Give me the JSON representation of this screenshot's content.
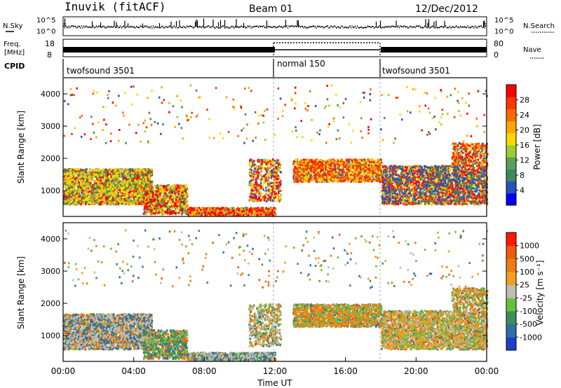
{
  "header": {
    "station": "Inuvik (fitACF)",
    "beam": "Beam 01",
    "date": "12/Dec/2012"
  },
  "top_panels": {
    "nsky_label": "N.Sky",
    "nsearch_label": "N.Search",
    "nsky_ticks": [
      "10^5",
      "10^0"
    ],
    "nsearch_ticks": [
      "10^5",
      "10^0"
    ],
    "freq_label": "Freq.",
    "freq_unit": "[MHz]",
    "freq_ticks": [
      "18",
      "8"
    ],
    "nave_label": "Nave",
    "nave_ticks": [
      "80",
      "0"
    ],
    "cpid_label": "CPID",
    "cpid_segments": [
      {
        "label": "twofsound 3501",
        "start_hour": 0,
        "end_hour": 12
      },
      {
        "label": "normal 150",
        "start_hour": 12,
        "end_hour": 18
      },
      {
        "label": "twofsound 3501",
        "start_hour": 18,
        "end_hour": 24
      }
    ]
  },
  "colors": {
    "power": [
      "#0000ff",
      "#2a52be",
      "#3a8c5c",
      "#5aa05a",
      "#9acd32",
      "#ffd700",
      "#ffa500",
      "#ff6a00",
      "#ff3300",
      "#ff0000"
    ],
    "velocity": [
      "#1a3fcc",
      "#2f6ea8",
      "#3d8f5a",
      "#6cbf3c",
      "#bdbdb5",
      "#f0a020",
      "#f07d10",
      "#f05a10",
      "#ff1a00"
    ],
    "power_scatter": [
      "#ff0000",
      "#ff3300",
      "#ff6a00",
      "#ffa500",
      "#ffd700",
      "#9acd32",
      "#3a8c5c",
      "#2a52be"
    ],
    "velocity_scatter": [
      "#f07d10",
      "#f0a020",
      "#6cbf3c",
      "#bdbdb5",
      "#3d8f5a",
      "#f05a10",
      "#2f6ea8"
    ]
  },
  "chart_data": [
    {
      "type": "heatmap",
      "ylabel": "Slant Range [km]",
      "yticks": [
        "1000",
        "2000",
        "3000",
        "4000"
      ],
      "colorbar_label": "Power [dB]",
      "colorbar_ticks": [
        "4",
        "8",
        "12",
        "16",
        "20",
        "24",
        "28"
      ],
      "ylim": [
        200,
        4500
      ],
      "xlim": [
        0,
        24
      ]
    },
    {
      "type": "heatmap",
      "ylabel": "Slant Range [km]",
      "yticks": [
        "1000",
        "2000",
        "3000",
        "4000"
      ],
      "xlabel": "Time UT",
      "xticks": [
        "00:00",
        "04:00",
        "08:00",
        "12:00",
        "16:00",
        "20:00",
        "00:00"
      ],
      "colorbar_label": "Velocity [m s⁻¹]",
      "colorbar_ticks": [
        "1000",
        "500",
        "100",
        "25",
        "-25",
        "-100",
        "-500",
        "-1000"
      ],
      "ylim": [
        200,
        4500
      ],
      "xlim": [
        0,
        24
      ]
    }
  ]
}
